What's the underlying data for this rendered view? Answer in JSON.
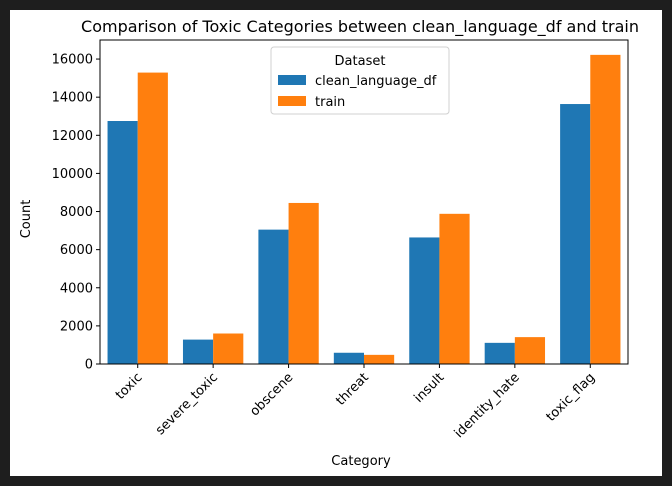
{
  "chart_data": {
    "type": "bar",
    "title": "Comparison of Toxic Categories between clean_language_df and train",
    "xlabel": "Category",
    "ylabel": "Count",
    "ylim": [
      0,
      17000
    ],
    "yticks": [
      0,
      2000,
      4000,
      6000,
      8000,
      10000,
      12000,
      14000,
      16000
    ],
    "grid": false,
    "legend_position": "upper center",
    "legend_title": "Dataset",
    "categories": [
      "toxic",
      "severe_toxic",
      "obscene",
      "threat",
      "insult",
      "identity_hate",
      "toxic_flag"
    ],
    "series": [
      {
        "name": "clean_language_df",
        "color": "#1f77b4",
        "values": [
          12750,
          1280,
          7050,
          590,
          6640,
          1110,
          13640
        ]
      },
      {
        "name": "train",
        "color": "#ff7f0e",
        "values": [
          15290,
          1600,
          8450,
          480,
          7880,
          1410,
          16220
        ]
      }
    ]
  }
}
